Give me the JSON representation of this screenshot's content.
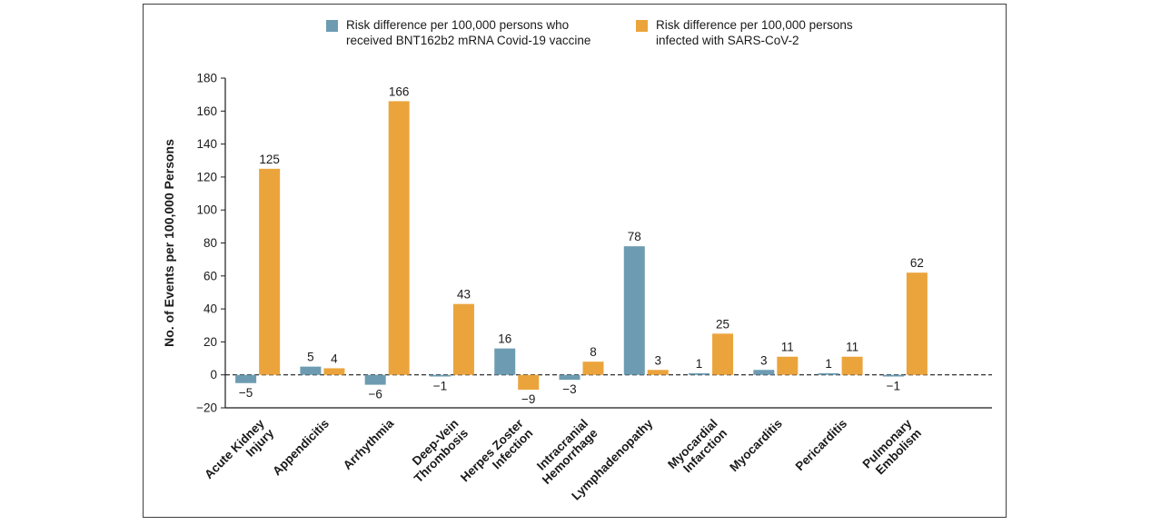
{
  "window": {
    "background": "#ffffff",
    "panel_border": "#3f3f3f"
  },
  "legend": {
    "items": [
      {
        "key": "vaccine",
        "label": "Risk difference per 100,000 persons who received BNT162b2 mRNA Covid-19 vaccine",
        "color": "#6d9cb2"
      },
      {
        "key": "sars-cov-2-infection",
        "label": "Risk difference per 100,000 persons infected with SARS-CoV-2",
        "color": "#eba43c"
      }
    ]
  },
  "chart_data": {
    "type": "bar",
    "title": "",
    "xlabel": "",
    "ylabel": "No. of Events per 100,000 Persons",
    "ylim": [
      -20,
      180
    ],
    "ytick_step": 20,
    "grid": false,
    "zero_line": "dashed",
    "legend_position": "top",
    "categories": [
      [
        "Acute Kidney",
        "Injury"
      ],
      [
        "Appendicitis"
      ],
      [
        "Arrhythmia"
      ],
      [
        "Deep-Vein",
        "Thrombosis"
      ],
      [
        "Herpes Zoster",
        "Infection"
      ],
      [
        "Intracranial",
        "Hemorrhage"
      ],
      [
        "Lymphadenopathy"
      ],
      [
        "Myocardial",
        "Infarction"
      ],
      [
        "Myocarditis"
      ],
      [
        "Pericarditis"
      ],
      [
        "Pulmonary",
        "Embolism"
      ]
    ],
    "series": [
      {
        "key": "vaccine",
        "name": "Risk difference per 100,000 persons who received BNT162b2 mRNA Covid-19 vaccine",
        "color": "#6d9cb2",
        "values": [
          -5,
          5,
          -6,
          -1,
          16,
          -3,
          78,
          1,
          3,
          1,
          -1
        ]
      },
      {
        "key": "sars-cov-2-infection",
        "name": "Risk difference per 100,000 persons infected with SARS-CoV-2",
        "color": "#eba43c",
        "values": [
          125,
          4,
          166,
          43,
          -9,
          8,
          3,
          25,
          11,
          11,
          62
        ]
      }
    ]
  }
}
